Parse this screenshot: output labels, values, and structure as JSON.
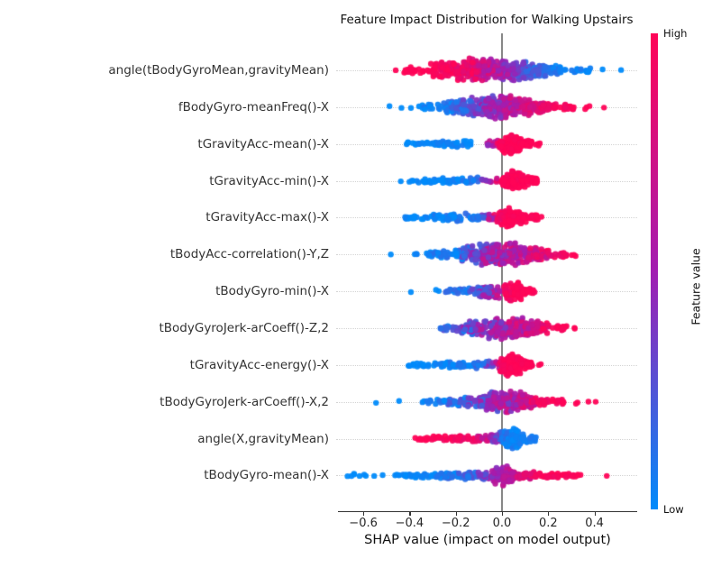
{
  "chart_data": {
    "type": "beeswarm",
    "title": "Feature Impact Distribution for Walking Upstairs",
    "xlabel": "SHAP value (impact on model output)",
    "x_axis": {
      "tick_values": [
        -0.6,
        -0.4,
        -0.2,
        0.0,
        0.2,
        0.4
      ],
      "tick_labels": [
        "−0.6",
        "−0.4",
        "−0.2",
        "0.0",
        "0.2",
        "0.4"
      ],
      "range": [
        -0.71,
        0.585
      ],
      "zero_line": true,
      "gridlines": "horizontal-dotted"
    },
    "colorbar": {
      "title": "Feature value",
      "high_label": "High",
      "low_label": "Low",
      "high_color": "#ff0457",
      "mid_color": "#a21db1",
      "low_color": "#008bfb"
    },
    "point_style": {
      "radius": 3.2,
      "alpha": 0.95
    },
    "features": [
      {
        "name": "angle(tBodyGyroMean,gravityMean)",
        "shap_range": [
          -0.46,
          0.51
        ],
        "segments": [
          [
            -0.46,
            -0.455,
            1,
            2,
            2,
            1,
            1,
            0
          ],
          [
            -0.42,
            -0.3,
            28,
            3,
            8,
            1,
            1,
            0.05
          ],
          [
            -0.3,
            -0.13,
            120,
            9,
            14,
            1,
            0.9,
            0.1
          ],
          [
            -0.13,
            0.02,
            150,
            14,
            13,
            0.85,
            0.5,
            0.18
          ],
          [
            0.02,
            0.13,
            110,
            13,
            10,
            0.5,
            0.22,
            0.18
          ],
          [
            0.13,
            0.25,
            60,
            9,
            5,
            0.2,
            0.08,
            0.1
          ],
          [
            0.25,
            0.38,
            22,
            4,
            2.5,
            0.05,
            0.03,
            0.05
          ],
          [
            0.43,
            0.435,
            1,
            2,
            2,
            0,
            0,
            0
          ],
          [
            0.51,
            0.515,
            1,
            2,
            2,
            0,
            0,
            0
          ]
        ]
      },
      {
        "name": "fBodyGyro-meanFreq()-X",
        "shap_range": [
          -0.49,
          0.44
        ],
        "segments": [
          [
            -0.49,
            -0.485,
            1,
            2,
            2,
            0,
            0,
            0
          ],
          [
            -0.44,
            -0.435,
            1,
            2,
            2,
            0,
            0,
            0
          ],
          [
            -0.4,
            -0.395,
            1,
            2,
            2,
            0,
            0,
            0
          ],
          [
            -0.36,
            -0.22,
            30,
            3,
            7,
            0.02,
            0.1,
            0.08
          ],
          [
            -0.22,
            -0.08,
            100,
            8,
            13,
            0.1,
            0.4,
            0.15
          ],
          [
            -0.08,
            0.05,
            150,
            13,
            14,
            0.4,
            0.62,
            0.2
          ],
          [
            0.05,
            0.18,
            95,
            12,
            7,
            0.65,
            0.9,
            0.15
          ],
          [
            0.18,
            0.33,
            38,
            5,
            3,
            0.92,
            1,
            0.06
          ],
          [
            0.35,
            0.39,
            3,
            2.5,
            2.5,
            1,
            1,
            0
          ],
          [
            0.44,
            0.445,
            1,
            2,
            2,
            1,
            1,
            0
          ]
        ]
      },
      {
        "name": "tGravityAcc-mean()-X",
        "shap_range": [
          -0.42,
          0.165
        ],
        "segments": [
          [
            -0.42,
            -0.31,
            16,
            2.5,
            3.5,
            0,
            0.02,
            0.04
          ],
          [
            -0.31,
            -0.13,
            38,
            3.5,
            4.5,
            0,
            0.05,
            0.06
          ],
          [
            -0.07,
            -0.01,
            10,
            3,
            5,
            0.5,
            0.85,
            0.2
          ],
          [
            -0.01,
            0.03,
            45,
            6,
            13,
            0.97,
            1,
            0.05
          ],
          [
            0.03,
            0.08,
            85,
            13,
            9,
            1,
            1,
            0.04
          ],
          [
            0.08,
            0.13,
            35,
            7,
            3.5,
            1,
            1,
            0.04
          ],
          [
            0.13,
            0.165,
            5,
            2.5,
            2.5,
            1,
            1,
            0
          ]
        ]
      },
      {
        "name": "tGravityAcc-min()-X",
        "shap_range": [
          -0.44,
          0.15
        ],
        "segments": [
          [
            -0.44,
            -0.435,
            1,
            2,
            2,
            0,
            0,
            0
          ],
          [
            -0.41,
            -0.28,
            20,
            2.5,
            3.5,
            0,
            0.02,
            0.05
          ],
          [
            -0.28,
            -0.1,
            42,
            3.5,
            5,
            0,
            0.08,
            0.08
          ],
          [
            -0.09,
            -0.02,
            10,
            3,
            5,
            0.45,
            0.8,
            0.2
          ],
          [
            0.0,
            0.04,
            45,
            6,
            13,
            0.95,
            1,
            0.05
          ],
          [
            0.04,
            0.09,
            80,
            13,
            9.5,
            1,
            1,
            0.04
          ],
          [
            0.09,
            0.15,
            38,
            8,
            3,
            1,
            1,
            0.04
          ]
        ]
      },
      {
        "name": "tGravityAcc-max()-X",
        "shap_range": [
          -0.43,
          0.175
        ],
        "segments": [
          [
            -0.43,
            -0.3,
            20,
            2.5,
            3.5,
            0,
            0.03,
            0.05
          ],
          [
            -0.3,
            -0.12,
            45,
            3.5,
            5.5,
            0.02,
            0.12,
            0.1
          ],
          [
            -0.12,
            -0.02,
            25,
            4,
            6,
            0.2,
            0.75,
            0.25
          ],
          [
            -0.02,
            0.03,
            45,
            7,
            13,
            0.92,
            1,
            0.06
          ],
          [
            0.03,
            0.08,
            70,
            13,
            9,
            1,
            1,
            0.04
          ],
          [
            0.08,
            0.16,
            35,
            7,
            3,
            1,
            1,
            0.04
          ],
          [
            0.17,
            0.175,
            1,
            2,
            2,
            1,
            1,
            0
          ]
        ]
      },
      {
        "name": "tBodyAcc-correlation()-Y,Z",
        "shap_range": [
          -0.48,
          0.355
        ],
        "segments": [
          [
            -0.48,
            -0.475,
            1,
            2,
            2,
            0,
            0,
            0
          ],
          [
            -0.4,
            -0.36,
            3,
            2.5,
            2.5,
            0,
            0.05,
            0.05
          ],
          [
            -0.33,
            -0.2,
            28,
            3,
            6,
            0.02,
            0.12,
            0.1
          ],
          [
            -0.2,
            -0.08,
            80,
            7,
            12,
            0.12,
            0.42,
            0.2
          ],
          [
            -0.08,
            0.08,
            160,
            13,
            14,
            0.45,
            0.62,
            0.25
          ],
          [
            0.08,
            0.2,
            75,
            12,
            7,
            0.62,
            0.85,
            0.2
          ],
          [
            0.2,
            0.28,
            18,
            5,
            3,
            0.88,
            1,
            0.08
          ],
          [
            0.3,
            0.355,
            3,
            2.5,
            2.5,
            1,
            1,
            0
          ]
        ]
      },
      {
        "name": "tBodyGyro-min()-X",
        "shap_range": [
          -0.4,
          0.14
        ],
        "segments": [
          [
            -0.4,
            -0.395,
            1,
            2,
            2,
            0,
            0,
            0
          ],
          [
            -0.29,
            -0.27,
            2,
            2.5,
            2.5,
            0,
            0,
            0
          ],
          [
            -0.24,
            -0.1,
            30,
            3,
            6,
            0.02,
            0.25,
            0.15
          ],
          [
            -0.1,
            -0.01,
            60,
            7,
            10,
            0.3,
            0.6,
            0.2
          ],
          [
            0.01,
            0.05,
            35,
            7,
            13,
            0.9,
            1,
            0.06
          ],
          [
            0.05,
            0.09,
            55,
            13,
            9,
            1,
            1,
            0.04
          ],
          [
            0.09,
            0.14,
            22,
            7,
            3,
            1,
            1,
            0.04
          ]
        ]
      },
      {
        "name": "tBodyGyroJerk-arCoeff()-Z,2",
        "shap_range": [
          -0.27,
          0.335
        ],
        "segments": [
          [
            -0.27,
            -0.17,
            22,
            3,
            6,
            0.15,
            0.3,
            0.15
          ],
          [
            -0.17,
            -0.05,
            75,
            7,
            12,
            0.3,
            0.5,
            0.25
          ],
          [
            -0.05,
            0.1,
            150,
            13,
            13,
            0.5,
            0.68,
            0.25
          ],
          [
            0.1,
            0.2,
            65,
            11,
            6,
            0.7,
            0.92,
            0.18
          ],
          [
            0.2,
            0.28,
            16,
            4,
            3,
            0.95,
            1,
            0.05
          ],
          [
            0.31,
            0.335,
            2,
            2.5,
            2.5,
            1,
            1,
            0
          ]
        ]
      },
      {
        "name": "tGravityAcc-energy()-X",
        "shap_range": [
          -0.42,
          0.175
        ],
        "segments": [
          [
            -0.42,
            -0.3,
            16,
            2.5,
            3,
            0,
            0.02,
            0.04
          ],
          [
            -0.3,
            -0.15,
            40,
            3,
            4.5,
            0,
            0.06,
            0.08
          ],
          [
            -0.15,
            -0.04,
            28,
            3.5,
            5,
            0.05,
            0.35,
            0.2
          ],
          [
            -0.04,
            -0.005,
            8,
            4,
            6,
            0.5,
            0.8,
            0.2
          ],
          [
            -0.005,
            0.03,
            45,
            8,
            15,
            0.95,
            1,
            0.05
          ],
          [
            0.03,
            0.08,
            80,
            15,
            10,
            1,
            1,
            0.04
          ],
          [
            0.08,
            0.13,
            28,
            8,
            3,
            1,
            1,
            0.04
          ],
          [
            0.15,
            0.175,
            2,
            2.5,
            2.5,
            1,
            1,
            0
          ]
        ]
      },
      {
        "name": "tBodyGyroJerk-arCoeff()-X,2",
        "shap_range": [
          -0.55,
          0.405
        ],
        "segments": [
          [
            -0.55,
            -0.545,
            1,
            2,
            2,
            0,
            0,
            0
          ],
          [
            -0.45,
            -0.445,
            1,
            2,
            2,
            0,
            0,
            0
          ],
          [
            -0.36,
            -0.25,
            13,
            2.5,
            4,
            0,
            0.08,
            0.08
          ],
          [
            -0.25,
            -0.1,
            48,
            4,
            8,
            0.08,
            0.3,
            0.18
          ],
          [
            -0.1,
            0.05,
            150,
            10,
            15,
            0.35,
            0.6,
            0.25
          ],
          [
            0.05,
            0.15,
            80,
            13,
            7,
            0.6,
            0.85,
            0.2
          ],
          [
            0.15,
            0.27,
            28,
            5,
            3,
            0.88,
            1,
            0.08
          ],
          [
            0.3,
            0.33,
            2,
            2.5,
            2.5,
            1,
            1,
            0
          ],
          [
            0.37,
            0.375,
            1,
            2,
            2,
            1,
            1,
            0
          ],
          [
            0.4,
            0.405,
            1,
            2,
            2,
            1,
            1,
            0
          ]
        ]
      },
      {
        "name": "angle(X,gravityMean)",
        "shap_range": [
          -0.38,
          0.15
        ],
        "segments": [
          [
            -0.38,
            -0.28,
            16,
            2.5,
            3,
            1,
            1,
            0.04
          ],
          [
            -0.28,
            -0.12,
            42,
            3,
            4,
            0.97,
            0.9,
            0.06
          ],
          [
            -0.12,
            -0.04,
            24,
            3.5,
            5,
            0.85,
            0.55,
            0.2
          ],
          [
            -0.04,
            0.0,
            15,
            5,
            9,
            0.45,
            0.2,
            0.15
          ],
          [
            0.0,
            0.04,
            42,
            9,
            14,
            0.12,
            0.05,
            0.08
          ],
          [
            0.04,
            0.08,
            55,
            14,
            9,
            0.05,
            0.05,
            0.06
          ],
          [
            0.08,
            0.15,
            28,
            7,
            3,
            0.05,
            0.05,
            0.05
          ]
        ]
      },
      {
        "name": "tBodyGyro-mean()-X",
        "shap_range": [
          -0.67,
          0.455
        ],
        "segments": [
          [
            -0.67,
            -0.48,
            9,
            2,
            2.5,
            0,
            0,
            0.03
          ],
          [
            -0.46,
            -0.3,
            32,
            2.5,
            3.5,
            0,
            0.04,
            0.05
          ],
          [
            -0.3,
            -0.1,
            65,
            3.5,
            5,
            0.02,
            0.2,
            0.12
          ],
          [
            -0.1,
            -0.04,
            30,
            4,
            8,
            0.25,
            0.5,
            0.15
          ],
          [
            -0.04,
            0.005,
            45,
            9,
            12,
            0.5,
            0.55,
            0.12
          ],
          [
            0.005,
            0.05,
            45,
            12,
            8,
            0.55,
            0.65,
            0.12
          ],
          [
            0.05,
            0.15,
            55,
            6,
            4,
            0.7,
            0.92,
            0.12
          ],
          [
            0.15,
            0.34,
            38,
            3.5,
            2.5,
            0.95,
            1,
            0.05
          ],
          [
            0.45,
            0.455,
            1,
            2,
            2,
            1,
            1,
            0
          ]
        ]
      }
    ],
    "segment_format": [
      "x_from",
      "x_to",
      "n_points",
      "jitter_px_at_from",
      "jitter_px_at_to",
      "feature_value_t_at_from (0=low/blue, 1=high/red)",
      "feature_value_t_at_to",
      "color_noise"
    ]
  }
}
